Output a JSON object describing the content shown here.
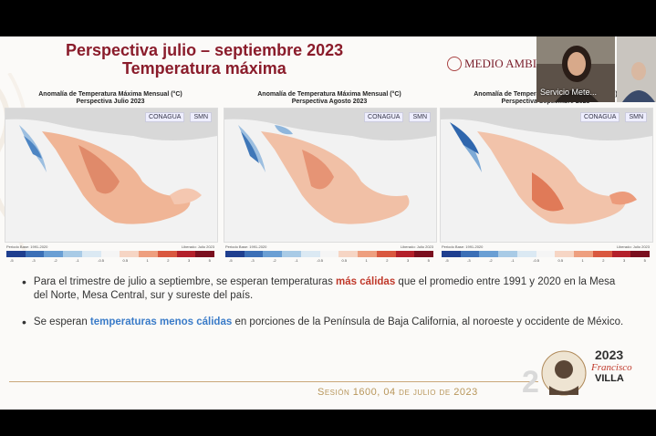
{
  "slide": {
    "title_line1": "Perspectiva julio – septiembre 2023",
    "title_line2": "Temperatura máxima",
    "gov_logo_text": "MEDIO AMBIE",
    "session": "Sesión 1600, 04 de julio de 2023",
    "anniversary": {
      "year": "2023",
      "name1": "Francisco",
      "name2": "VILLA"
    }
  },
  "video": {
    "presenter_name": "Servicio Mete..."
  },
  "maps": [
    {
      "title1": "Anomalía de Temperatura Máxima Mensual (°C)",
      "title2": "Perspectiva Julio 2023",
      "left_note": "Periodo Base: 1991-2020",
      "right_note": "Liberado: Julio 2023"
    },
    {
      "title1": "Anomalía de Temperatura Máxima Mensual (°C)",
      "title2": "Perspectiva Agosto 2023",
      "left_note": "Periodo Base: 1991-2020",
      "right_note": "Liberado: Julio 2023"
    },
    {
      "title1": "Anomalía de Temperatura Máxima Mensual (°C)",
      "title2": "Perspectiva Septiembre 2023",
      "left_note": "Periodo Base: 1991-2020",
      "right_note": "Liberado: Julio 2023"
    }
  ],
  "logos": {
    "conagua": "CONAGUA",
    "smn": "SMN"
  },
  "legend": {
    "ticks": [
      "-5",
      "-3",
      "-2",
      "-1",
      "-0.5",
      "0.5",
      "1",
      "2",
      "3",
      "5"
    ],
    "colors": [
      "#1f3f8f",
      "#3b6fb6",
      "#6a9fd4",
      "#a9cbe6",
      "#dbe9f3",
      "#f5f5f5",
      "#f6d5c4",
      "#ee9f7f",
      "#d9583f",
      "#b3202a",
      "#7a0f1e"
    ]
  },
  "bullets": [
    {
      "pre": "Para el trimestre de julio a septiembre, se esperan temperaturas ",
      "emph": "más cálidas",
      "post": " que el promedio entre 1991 y 2020 en la Mesa del Norte, Mesa Central, sur y sureste del país."
    },
    {
      "pre": "Se esperan ",
      "emph": "temperaturas menos cálidas",
      "post": " en porciones de la Península de Baja California, al noroeste y occidente de México."
    }
  ]
}
